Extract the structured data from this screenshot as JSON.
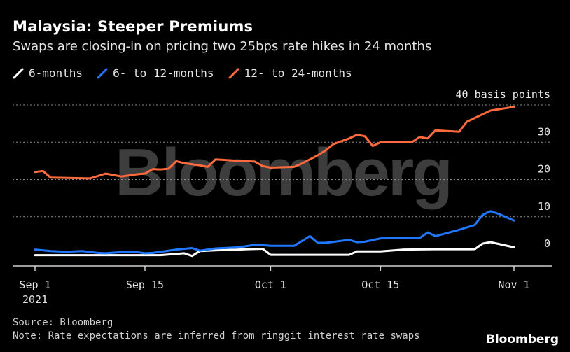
{
  "header": {
    "title": "Malaysia: Steeper Premiums",
    "subtitle": "Swaps are closing-in on pricing two 25bps rate hikes in 24 months"
  },
  "legend": [
    {
      "label": "6-months",
      "color": "#ffffff"
    },
    {
      "label": "6- to 12-months",
      "color": "#1f78ff"
    },
    {
      "label": "12- to 24-months",
      "color": "#ff6a3d"
    }
  ],
  "footer": {
    "source": "Source: Bloomberg",
    "note": "Note: Rate expectations are inferred from ringgit interest rate swaps",
    "brand": "Bloomberg",
    "watermark": "Bloomberg"
  },
  "chart_data": {
    "type": "line",
    "title": "Malaysia: Steeper Premiums",
    "subtitle": "Swaps are closing-in on pricing two 25bps rate hikes in 24 months",
    "ylabel": "40 basis points",
    "ylim": [
      -3,
      40
    ],
    "yticks": [
      {
        "value": 0,
        "label": "0"
      },
      {
        "value": 10,
        "label": "10"
      },
      {
        "value": 20,
        "label": "20"
      },
      {
        "value": 30,
        "label": "30"
      },
      {
        "value": 40,
        "label": "40 basis points"
      }
    ],
    "xlim": [
      "2021-09-01",
      "2021-11-01"
    ],
    "xticks": [
      {
        "date": "2021-09-01",
        "label": "Sep 1",
        "sublabel": "2021"
      },
      {
        "date": "2021-09-15",
        "label": "Sep 15",
        "sublabel": ""
      },
      {
        "date": "2021-10-01",
        "label": "Oct 1",
        "sublabel": ""
      },
      {
        "date": "2021-10-15",
        "label": "Oct 15",
        "sublabel": ""
      },
      {
        "date": "2021-11-01",
        "label": "Nov 1",
        "sublabel": ""
      }
    ],
    "grid": true,
    "legend_position": "top-left",
    "series": [
      {
        "name": "6-months",
        "color": "#ffffff",
        "points": [
          [
            "2021-09-01",
            -0.3
          ],
          [
            "2021-09-03",
            -0.3
          ],
          [
            "2021-09-07",
            -0.3
          ],
          [
            "2021-09-10",
            -0.3
          ],
          [
            "2021-09-14",
            -0.3
          ],
          [
            "2021-09-17",
            -0.3
          ],
          [
            "2021-09-20",
            0.2
          ],
          [
            "2021-09-21",
            -0.5
          ],
          [
            "2021-09-22",
            0.8
          ],
          [
            "2021-09-24",
            1.0
          ],
          [
            "2021-09-27",
            1.2
          ],
          [
            "2021-09-28",
            1.3
          ],
          [
            "2021-09-30",
            1.4
          ],
          [
            "2021-10-01",
            -0.2
          ],
          [
            "2021-10-05",
            -0.2
          ],
          [
            "2021-10-08",
            -0.2
          ],
          [
            "2021-10-11",
            -0.2
          ],
          [
            "2021-10-12",
            0.7
          ],
          [
            "2021-10-15",
            0.7
          ],
          [
            "2021-10-18",
            1.2
          ],
          [
            "2021-10-22",
            1.3
          ],
          [
            "2021-10-25",
            1.3
          ],
          [
            "2021-10-27",
            1.3
          ],
          [
            "2021-10-28",
            2.8
          ],
          [
            "2021-10-29",
            3.2
          ],
          [
            "2021-11-01",
            1.8
          ]
        ]
      },
      {
        "name": "6- to 12-months",
        "color": "#1f78ff",
        "points": [
          [
            "2021-09-01",
            1.2
          ],
          [
            "2021-09-03",
            0.8
          ],
          [
            "2021-09-05",
            0.6
          ],
          [
            "2021-09-07",
            0.8
          ],
          [
            "2021-09-09",
            0.3
          ],
          [
            "2021-09-10",
            0.2
          ],
          [
            "2021-09-12",
            0.5
          ],
          [
            "2021-09-14",
            0.5
          ],
          [
            "2021-09-15",
            0.2
          ],
          [
            "2021-09-16",
            0.3
          ],
          [
            "2021-09-19",
            1.2
          ],
          [
            "2021-09-21",
            1.6
          ],
          [
            "2021-09-22",
            0.9
          ],
          [
            "2021-09-24",
            1.5
          ],
          [
            "2021-09-27",
            1.8
          ],
          [
            "2021-09-29",
            2.5
          ],
          [
            "2021-09-30",
            2.4
          ],
          [
            "2021-10-01",
            2.2
          ],
          [
            "2021-10-04",
            2.2
          ],
          [
            "2021-10-06",
            4.8
          ],
          [
            "2021-10-07",
            3.0
          ],
          [
            "2021-10-08",
            3.0
          ],
          [
            "2021-10-11",
            3.8
          ],
          [
            "2021-10-12",
            3.2
          ],
          [
            "2021-10-13",
            3.3
          ],
          [
            "2021-10-15",
            4.2
          ],
          [
            "2021-10-20",
            4.3
          ],
          [
            "2021-10-21",
            5.8
          ],
          [
            "2021-10-22",
            4.8
          ],
          [
            "2021-10-25",
            6.5
          ],
          [
            "2021-10-27",
            7.8
          ],
          [
            "2021-10-28",
            10.5
          ],
          [
            "2021-10-29",
            11.5
          ],
          [
            "2021-10-30",
            10.8
          ],
          [
            "2021-11-01",
            9.0
          ]
        ]
      },
      {
        "name": "12- to 24-months",
        "color": "#ff6a3d",
        "points": [
          [
            "2021-09-01",
            22.0
          ],
          [
            "2021-09-02",
            22.3
          ],
          [
            "2021-09-03",
            20.5
          ],
          [
            "2021-09-08",
            20.3
          ],
          [
            "2021-09-10",
            21.6
          ],
          [
            "2021-09-12",
            20.8
          ],
          [
            "2021-09-14",
            21.4
          ],
          [
            "2021-09-15",
            21.6
          ],
          [
            "2021-09-16",
            22.8
          ],
          [
            "2021-09-17",
            22.7
          ],
          [
            "2021-09-18",
            22.9
          ],
          [
            "2021-09-19",
            24.9
          ],
          [
            "2021-09-20",
            24.4
          ],
          [
            "2021-09-22",
            23.8
          ],
          [
            "2021-09-23",
            23.4
          ],
          [
            "2021-09-24",
            25.4
          ],
          [
            "2021-09-27",
            25.0
          ],
          [
            "2021-09-29",
            24.8
          ],
          [
            "2021-09-30",
            23.6
          ],
          [
            "2021-10-01",
            23.2
          ],
          [
            "2021-10-04",
            23.4
          ],
          [
            "2021-10-05",
            24.3
          ],
          [
            "2021-10-07",
            26.5
          ],
          [
            "2021-10-08",
            27.8
          ],
          [
            "2021-10-09",
            29.5
          ],
          [
            "2021-10-11",
            31.0
          ],
          [
            "2021-10-12",
            32.0
          ],
          [
            "2021-10-13",
            31.6
          ],
          [
            "2021-10-14",
            29.0
          ],
          [
            "2021-10-15",
            30.0
          ],
          [
            "2021-10-19",
            30.0
          ],
          [
            "2021-10-20",
            31.4
          ],
          [
            "2021-10-21",
            31.0
          ],
          [
            "2021-10-22",
            33.2
          ],
          [
            "2021-10-25",
            32.8
          ],
          [
            "2021-10-26",
            35.5
          ],
          [
            "2021-10-28",
            37.5
          ],
          [
            "2021-10-29",
            38.5
          ],
          [
            "2021-11-01",
            39.5
          ]
        ]
      }
    ]
  }
}
